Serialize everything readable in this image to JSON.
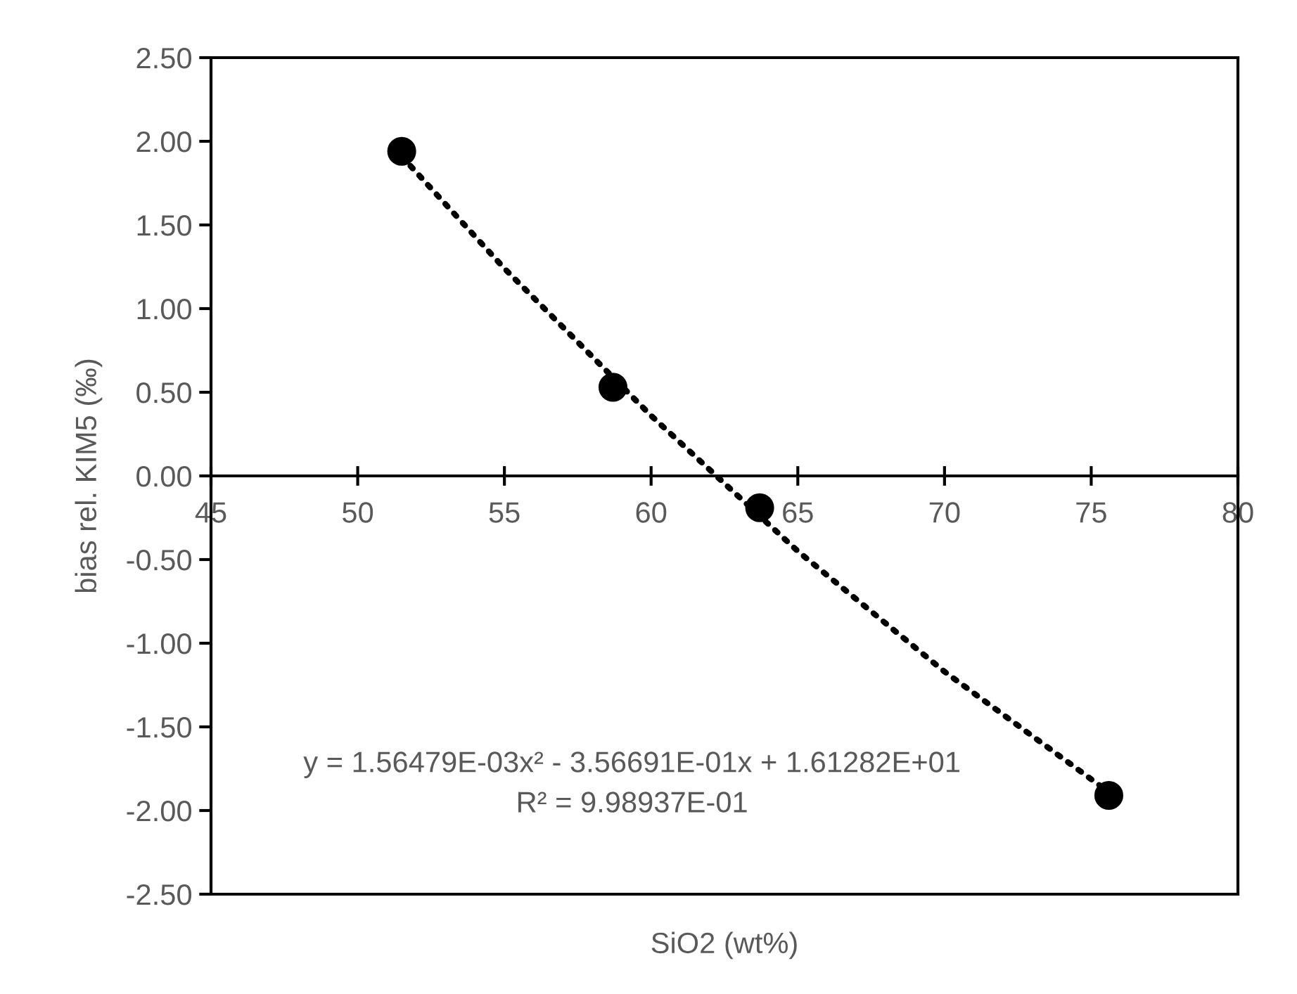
{
  "chart_data": {
    "type": "scatter",
    "xlabel": "SiO2 (wt%)",
    "ylabel": "bias rel. KIM5 (‰)",
    "xlim": [
      45,
      80
    ],
    "xticks": [
      45,
      50,
      55,
      60,
      65,
      70,
      75,
      80
    ],
    "ylim": [
      -2.5,
      2.5
    ],
    "yticks": [
      {
        "value": -2.5,
        "label": "-2.50"
      },
      {
        "value": -2.0,
        "label": "-2.00"
      },
      {
        "value": -1.5,
        "label": "-1.50"
      },
      {
        "value": -1.0,
        "label": "-1.00"
      },
      {
        "value": -0.5,
        "label": "-0.50"
      },
      {
        "value": 0,
        "label": "0.00"
      },
      {
        "value": 0.5,
        "label": "0.50"
      },
      {
        "value": 1.0,
        "label": "1.00"
      },
      {
        "value": 1.5,
        "label": "1.50"
      },
      {
        "value": 2.0,
        "label": "2.00"
      },
      {
        "value": 2.5,
        "label": "2.50"
      }
    ],
    "grid": false,
    "series": [
      {
        "color": "#000000",
        "marker": "circle",
        "x": [
          51.5,
          58.7,
          63.7,
          75.6
        ],
        "values": [
          1.94,
          0.53,
          -0.19,
          -1.91
        ]
      },
      {
        "type": "line",
        "color": "#000000",
        "line_style": "dotted",
        "marker": "none",
        "x": [
          51.5,
          55,
          60,
          65,
          70,
          75.6
        ],
        "values": [
          1.91,
          1.24,
          0.36,
          -0.45,
          -1.17,
          -1.89
        ]
      }
    ],
    "annotations": [
      {
        "text": "y = 1.56479E-03x² - 3.56691E-01x + 1.61282E+01"
      },
      {
        "text": "R² = 9.98937E-01"
      }
    ]
  }
}
